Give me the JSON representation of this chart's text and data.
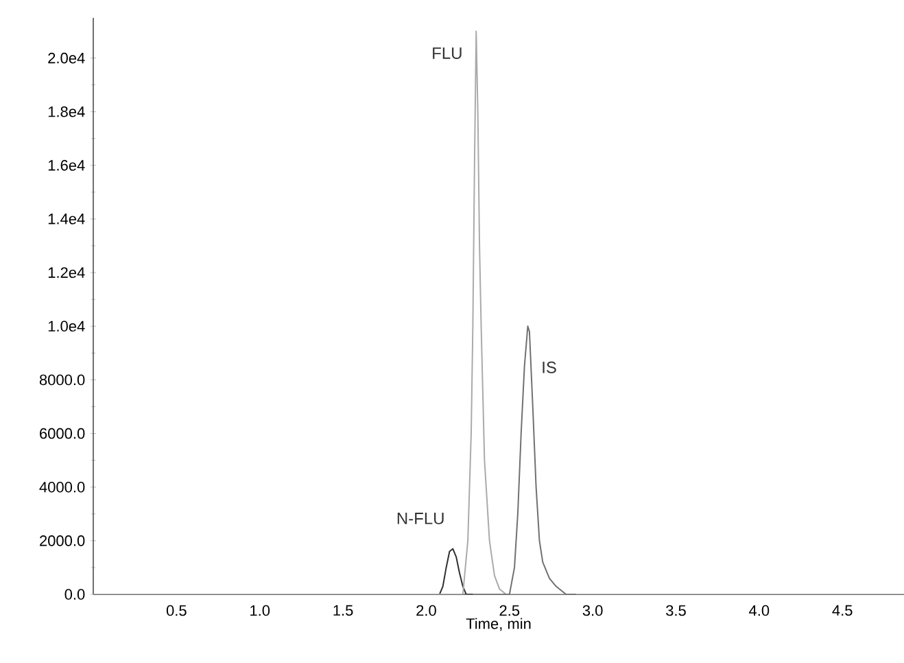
{
  "chart_data": {
    "type": "line",
    "xlabel": "Time, min",
    "xlim": [
      0,
      4.87
    ],
    "ylim": [
      0,
      21500
    ],
    "xticks": [
      0.5,
      {
        "value": 1,
        "label": "1.0"
      },
      1.5,
      {
        "value": 2,
        "label": "2.0"
      },
      2.5,
      {
        "value": 3,
        "label": "3.0"
      },
      3.5,
      {
        "value": 4,
        "label": "4.0"
      },
      4.5
    ],
    "yticks": [
      {
        "value": 0,
        "label": "0.0"
      },
      {
        "value": 2000,
        "label": "2000.0"
      },
      {
        "value": 4000,
        "label": "4000.0"
      },
      {
        "value": 6000,
        "label": "6000.0"
      },
      {
        "value": 8000,
        "label": "8000.0"
      },
      {
        "value": 10000,
        "label": "1.0e4"
      },
      {
        "value": 12000,
        "label": "1.2e4"
      },
      {
        "value": 14000,
        "label": "1.4e4"
      },
      {
        "value": 16000,
        "label": "1.6e4"
      },
      {
        "value": 18000,
        "label": "1.8e4"
      },
      {
        "value": 20000,
        "label": "2.0e4"
      }
    ],
    "grid": false,
    "legend": false,
    "marker": "none",
    "line_style": "solid",
    "series": [
      {
        "name": "N-FLU",
        "color": "#303030",
        "x": [
          2.04,
          2.08,
          2.1,
          2.12,
          2.14,
          2.16,
          2.18,
          2.2,
          2.22,
          2.24,
          2.28
        ],
        "values": [
          0,
          0,
          300,
          1000,
          1600,
          1700,
          1400,
          800,
          300,
          0,
          0
        ]
      },
      {
        "name": "FLU",
        "color": "#aaaaaa",
        "x": [
          0,
          0.5,
          1.0,
          1.5,
          2.0,
          2.22,
          2.25,
          2.27,
          2.28,
          2.29,
          2.3,
          2.31,
          2.32,
          2.33,
          2.35,
          2.38,
          2.41,
          2.44,
          2.48,
          3.0,
          4.0,
          4.87
        ],
        "values": [
          0,
          0,
          0,
          0,
          0,
          0,
          2000,
          6000,
          10000,
          16000,
          21000,
          18000,
          13000,
          10000,
          5000,
          2000,
          700,
          200,
          0,
          0,
          0,
          0
        ]
      },
      {
        "name": "IS",
        "color": "#707070",
        "x": [
          2.46,
          2.5,
          2.53,
          2.55,
          2.57,
          2.59,
          2.61,
          2.62,
          2.64,
          2.66,
          2.68,
          2.7,
          2.74,
          2.78,
          2.84,
          2.9
        ],
        "values": [
          0,
          0,
          1000,
          3000,
          6000,
          8500,
          10000,
          9800,
          7000,
          4000,
          2000,
          1200,
          600,
          300,
          0,
          0
        ]
      }
    ]
  }
}
